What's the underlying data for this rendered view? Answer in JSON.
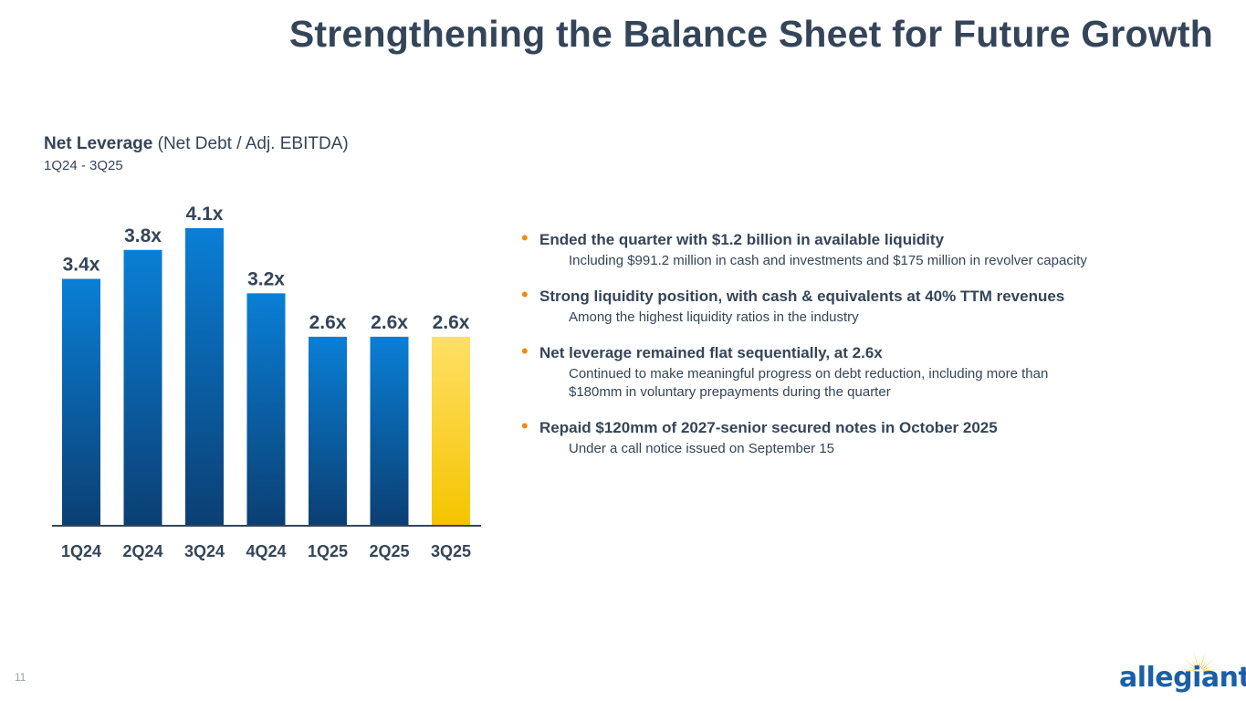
{
  "title": "Strengthening the Balance Sheet for Future Growth",
  "chart_header": {
    "bold": "Net Leverage",
    "rest": " (Net Debt / Adj. EBITDA)",
    "period": "1Q24 - 3Q25"
  },
  "chart_data": {
    "type": "bar",
    "categories": [
      "1Q24",
      "2Q24",
      "3Q24",
      "4Q24",
      "1Q25",
      "2Q25",
      "3Q25"
    ],
    "values": [
      3.4,
      3.8,
      4.1,
      3.2,
      2.6,
      2.6,
      2.6
    ],
    "data_labels": [
      "3.4x",
      "3.8x",
      "4.1x",
      "3.2x",
      "2.6x",
      "2.6x",
      "2.6x"
    ],
    "highlight_index": 6,
    "colors": {
      "bar_top": "#0a7fd6",
      "bar_bottom": "#0b3f73",
      "highlight_top": "#ffe066",
      "highlight_bottom": "#f5c400",
      "axis": "#344559",
      "label": "#344559"
    },
    "ylim": [
      0,
      4.1
    ],
    "grid": false
  },
  "bullets": [
    {
      "head": "Ended the quarter with $1.2 billion in available liquidity",
      "sub": [
        "Including $991.2 million in cash and investments and $175 million in revolver capacity"
      ]
    },
    {
      "head": "Strong liquidity position, with cash & equivalents at 40% TTM revenues",
      "sub": [
        "Among the highest liquidity ratios in the industry"
      ]
    },
    {
      "head": "Net leverage remained flat sequentially, at 2.6x",
      "sub": [
        "Continued to make meaningful progress on debt reduction, including more than",
        "$180mm in voluntary prepayments during the quarter"
      ]
    },
    {
      "head": "Repaid $120mm of 2027-senior secured notes in October 2025",
      "sub": [
        "Under a call notice issued on September 15"
      ]
    }
  ],
  "page_number": "11",
  "logo": {
    "text": "allegiant",
    "icon": "sun-icon",
    "sun_color": "#f5b400"
  }
}
